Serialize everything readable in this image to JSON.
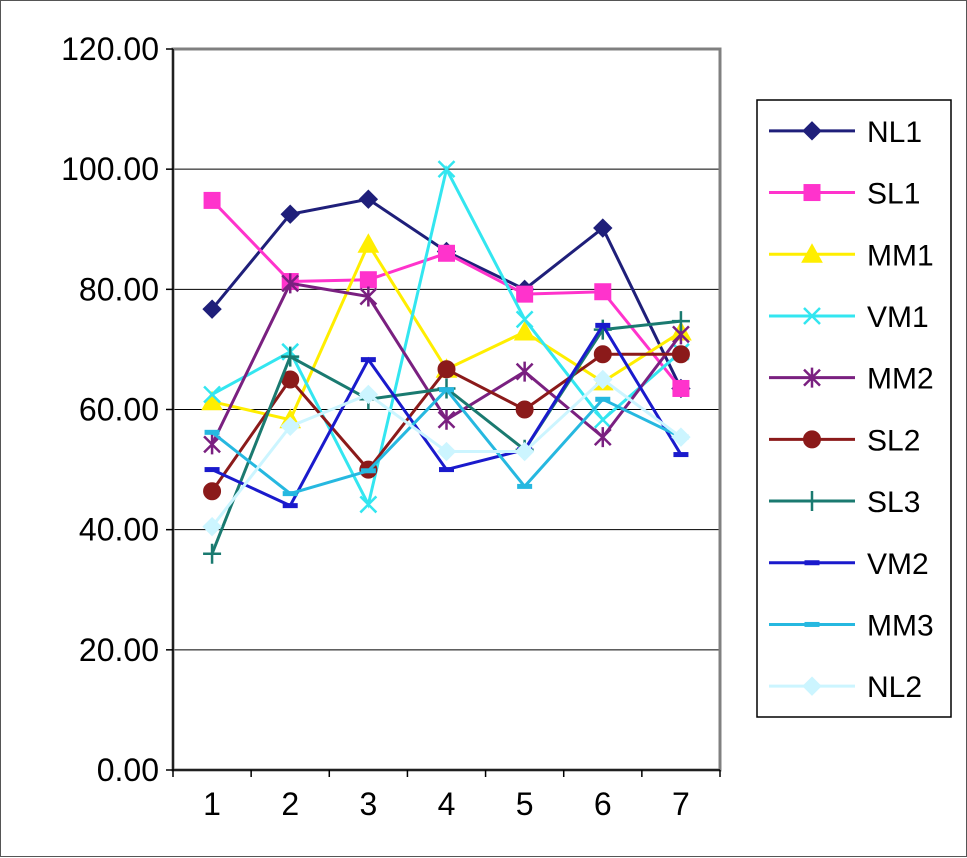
{
  "chart_data": {
    "type": "line",
    "title": "",
    "xlabel": "",
    "ylabel": "",
    "x": [
      1,
      2,
      3,
      4,
      5,
      6,
      7
    ],
    "x_tick_labels": [
      "1",
      "2",
      "3",
      "4",
      "5",
      "6",
      "7"
    ],
    "ylim": [
      0,
      120
    ],
    "y_ticks": [
      0,
      20,
      40,
      60,
      80,
      100,
      120
    ],
    "y_tick_labels": [
      "0.00",
      "20.00",
      "40.00",
      "60.00",
      "80.00",
      "100.00",
      "120.00"
    ],
    "grid": "horizontal",
    "legend_position": "right",
    "series": [
      {
        "name": "NL1",
        "color": "#1f1f7a",
        "marker": "diamond",
        "values": [
          76.7,
          92.5,
          95.0,
          86.3,
          80.0,
          90.2,
          63.5
        ]
      },
      {
        "name": "SL1",
        "color": "#ff33cc",
        "marker": "square",
        "values": [
          94.8,
          81.3,
          81.6,
          86.0,
          79.2,
          79.6,
          63.5
        ]
      },
      {
        "name": "MM1",
        "color": "#ffee00",
        "marker": "triangle",
        "values": [
          61.3,
          58.3,
          87.5,
          66.7,
          72.9,
          64.6,
          72.9
        ]
      },
      {
        "name": "VM1",
        "color": "#33e6f0",
        "marker": "x",
        "values": [
          62.5,
          69.6,
          44.2,
          100.0,
          75.0,
          58.3,
          69.6
        ]
      },
      {
        "name": "MM2",
        "color": "#7a2080",
        "marker": "star",
        "values": [
          54.2,
          81.0,
          78.8,
          58.3,
          66.3,
          55.4,
          72.5
        ]
      },
      {
        "name": "SL2",
        "color": "#8b1a1a",
        "marker": "circle",
        "values": [
          46.4,
          65.0,
          50.0,
          66.7,
          60.0,
          69.2,
          69.2
        ]
      },
      {
        "name": "SL3",
        "color": "#1a7a70",
        "marker": "plus",
        "values": [
          36.0,
          68.8,
          61.7,
          63.5,
          53.3,
          73.3,
          74.7
        ]
      },
      {
        "name": "VM2",
        "color": "#1a1acc",
        "marker": "dash",
        "values": [
          50.0,
          44.0,
          68.3,
          50.0,
          53.3,
          74.0,
          52.5
        ]
      },
      {
        "name": "MM3",
        "color": "#26b8e0",
        "marker": "dash",
        "values": [
          56.2,
          46.0,
          49.8,
          63.3,
          47.2,
          61.7,
          55.4
        ]
      },
      {
        "name": "NL2",
        "color": "#ccf5ff",
        "marker": "diamond",
        "values": [
          40.5,
          57.2,
          62.5,
          53.0,
          53.0,
          65.0,
          55.4
        ]
      }
    ]
  }
}
